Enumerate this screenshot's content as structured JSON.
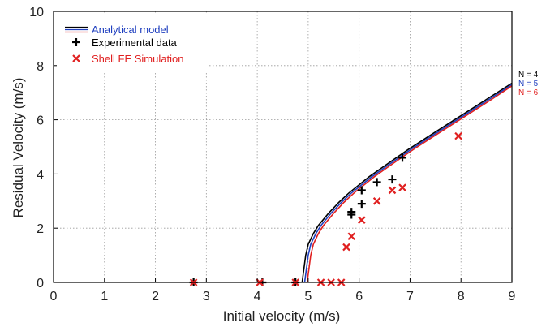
{
  "chart_data": {
    "type": "line",
    "title": "",
    "xlabel": "Initial velocity (m/s)",
    "ylabel": "Residual Velocity (m/s)",
    "xlim": [
      0,
      9
    ],
    "ylim": [
      0,
      10
    ],
    "xticks": [
      0,
      1,
      2,
      3,
      4,
      5,
      6,
      7,
      8,
      9
    ],
    "yticks": [
      0,
      2,
      4,
      6,
      8,
      10
    ],
    "grid": true,
    "legend_position": "top-left",
    "legend": [
      {
        "label": "Analytical model",
        "color": "#1f3fbf",
        "marker": "lines"
      },
      {
        "label": "Experimental data",
        "color": "#000000",
        "marker": "plus"
      },
      {
        "label": "Shell FE Simulation",
        "color": "#e02020",
        "marker": "cross"
      }
    ],
    "series": [
      {
        "name": "N = 4",
        "kind": "line",
        "color": "#000000",
        "x": [
          4.88,
          4.95,
          5.0,
          5.1,
          5.2,
          5.4,
          5.6,
          5.8,
          6.0,
          6.2,
          6.5,
          7.0,
          7.5,
          8.0,
          8.5,
          9.0
        ],
        "y": [
          0,
          1.0,
          1.4,
          1.8,
          2.1,
          2.55,
          2.95,
          3.3,
          3.6,
          3.9,
          4.3,
          4.95,
          5.55,
          6.15,
          6.75,
          7.35
        ]
      },
      {
        "name": "N = 5",
        "kind": "line",
        "color": "#1f3fbf",
        "x": [
          4.93,
          5.0,
          5.05,
          5.15,
          5.25,
          5.45,
          5.65,
          5.85,
          6.05,
          6.25,
          6.55,
          7.05,
          7.55,
          8.05,
          8.55,
          9.0
        ],
        "y": [
          0,
          1.0,
          1.4,
          1.8,
          2.1,
          2.55,
          2.95,
          3.3,
          3.6,
          3.9,
          4.3,
          4.95,
          5.55,
          6.15,
          6.75,
          7.3
        ]
      },
      {
        "name": "N = 6",
        "kind": "line",
        "color": "#e02020",
        "x": [
          4.98,
          5.05,
          5.1,
          5.2,
          5.3,
          5.5,
          5.7,
          5.9,
          6.1,
          6.3,
          6.6,
          7.1,
          7.6,
          8.1,
          8.6,
          9.0
        ],
        "y": [
          0,
          1.0,
          1.4,
          1.8,
          2.1,
          2.55,
          2.95,
          3.3,
          3.6,
          3.9,
          4.3,
          4.95,
          5.55,
          6.15,
          6.75,
          7.25
        ]
      },
      {
        "name": "Experimental data",
        "kind": "scatter",
        "marker": "plus",
        "color": "#000000",
        "x": [
          2.75,
          4.1,
          4.75,
          5.85,
          5.85,
          6.05,
          6.05,
          6.35,
          6.65,
          6.85
        ],
        "y": [
          0,
          0,
          0,
          2.6,
          2.5,
          2.9,
          3.4,
          3.7,
          3.8,
          4.6
        ]
      },
      {
        "name": "Shell FE Simulation",
        "kind": "scatter",
        "marker": "cross",
        "color": "#e02020",
        "x": [
          2.75,
          4.05,
          4.75,
          5.25,
          5.45,
          5.65,
          5.75,
          5.85,
          6.05,
          6.35,
          6.65,
          6.85,
          7.95
        ],
        "y": [
          0,
          0,
          0,
          0,
          0,
          0,
          1.3,
          1.7,
          2.3,
          3.0,
          3.4,
          3.5,
          5.4
        ]
      }
    ],
    "line_labels": [
      {
        "text": "N = 4",
        "color": "#000000"
      },
      {
        "text": "N = 5",
        "color": "#1f3fbf"
      },
      {
        "text": "N = 6",
        "color": "#e02020"
      }
    ]
  }
}
